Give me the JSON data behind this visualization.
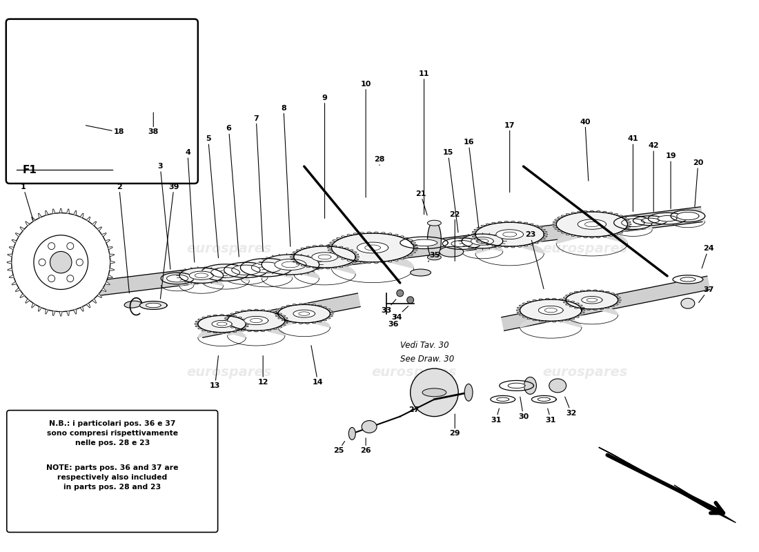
{
  "bg_color": "#ffffff",
  "watermark_text": "eurospares",
  "watermark_color": "#c8c8c8",
  "note_italian": "N.B.: i particolari pos. 36 e 37\nsono compresi rispettivamente\nnelle pos. 28 e 23",
  "note_english": "NOTE: parts pos. 36 and 37 are\nrespectively also included\nin parts pos. 28 and 23",
  "vedi_text1": "Vedi Tav. 30",
  "vedi_text2": "See Draw. 30",
  "f1_label": "F1",
  "lc": "#000000",
  "shaft_fill": "#d8d8d8",
  "gear_face": "#f2f2f2",
  "gear_side": "#e0e0e0",
  "ring_face": "#f5f5f5"
}
